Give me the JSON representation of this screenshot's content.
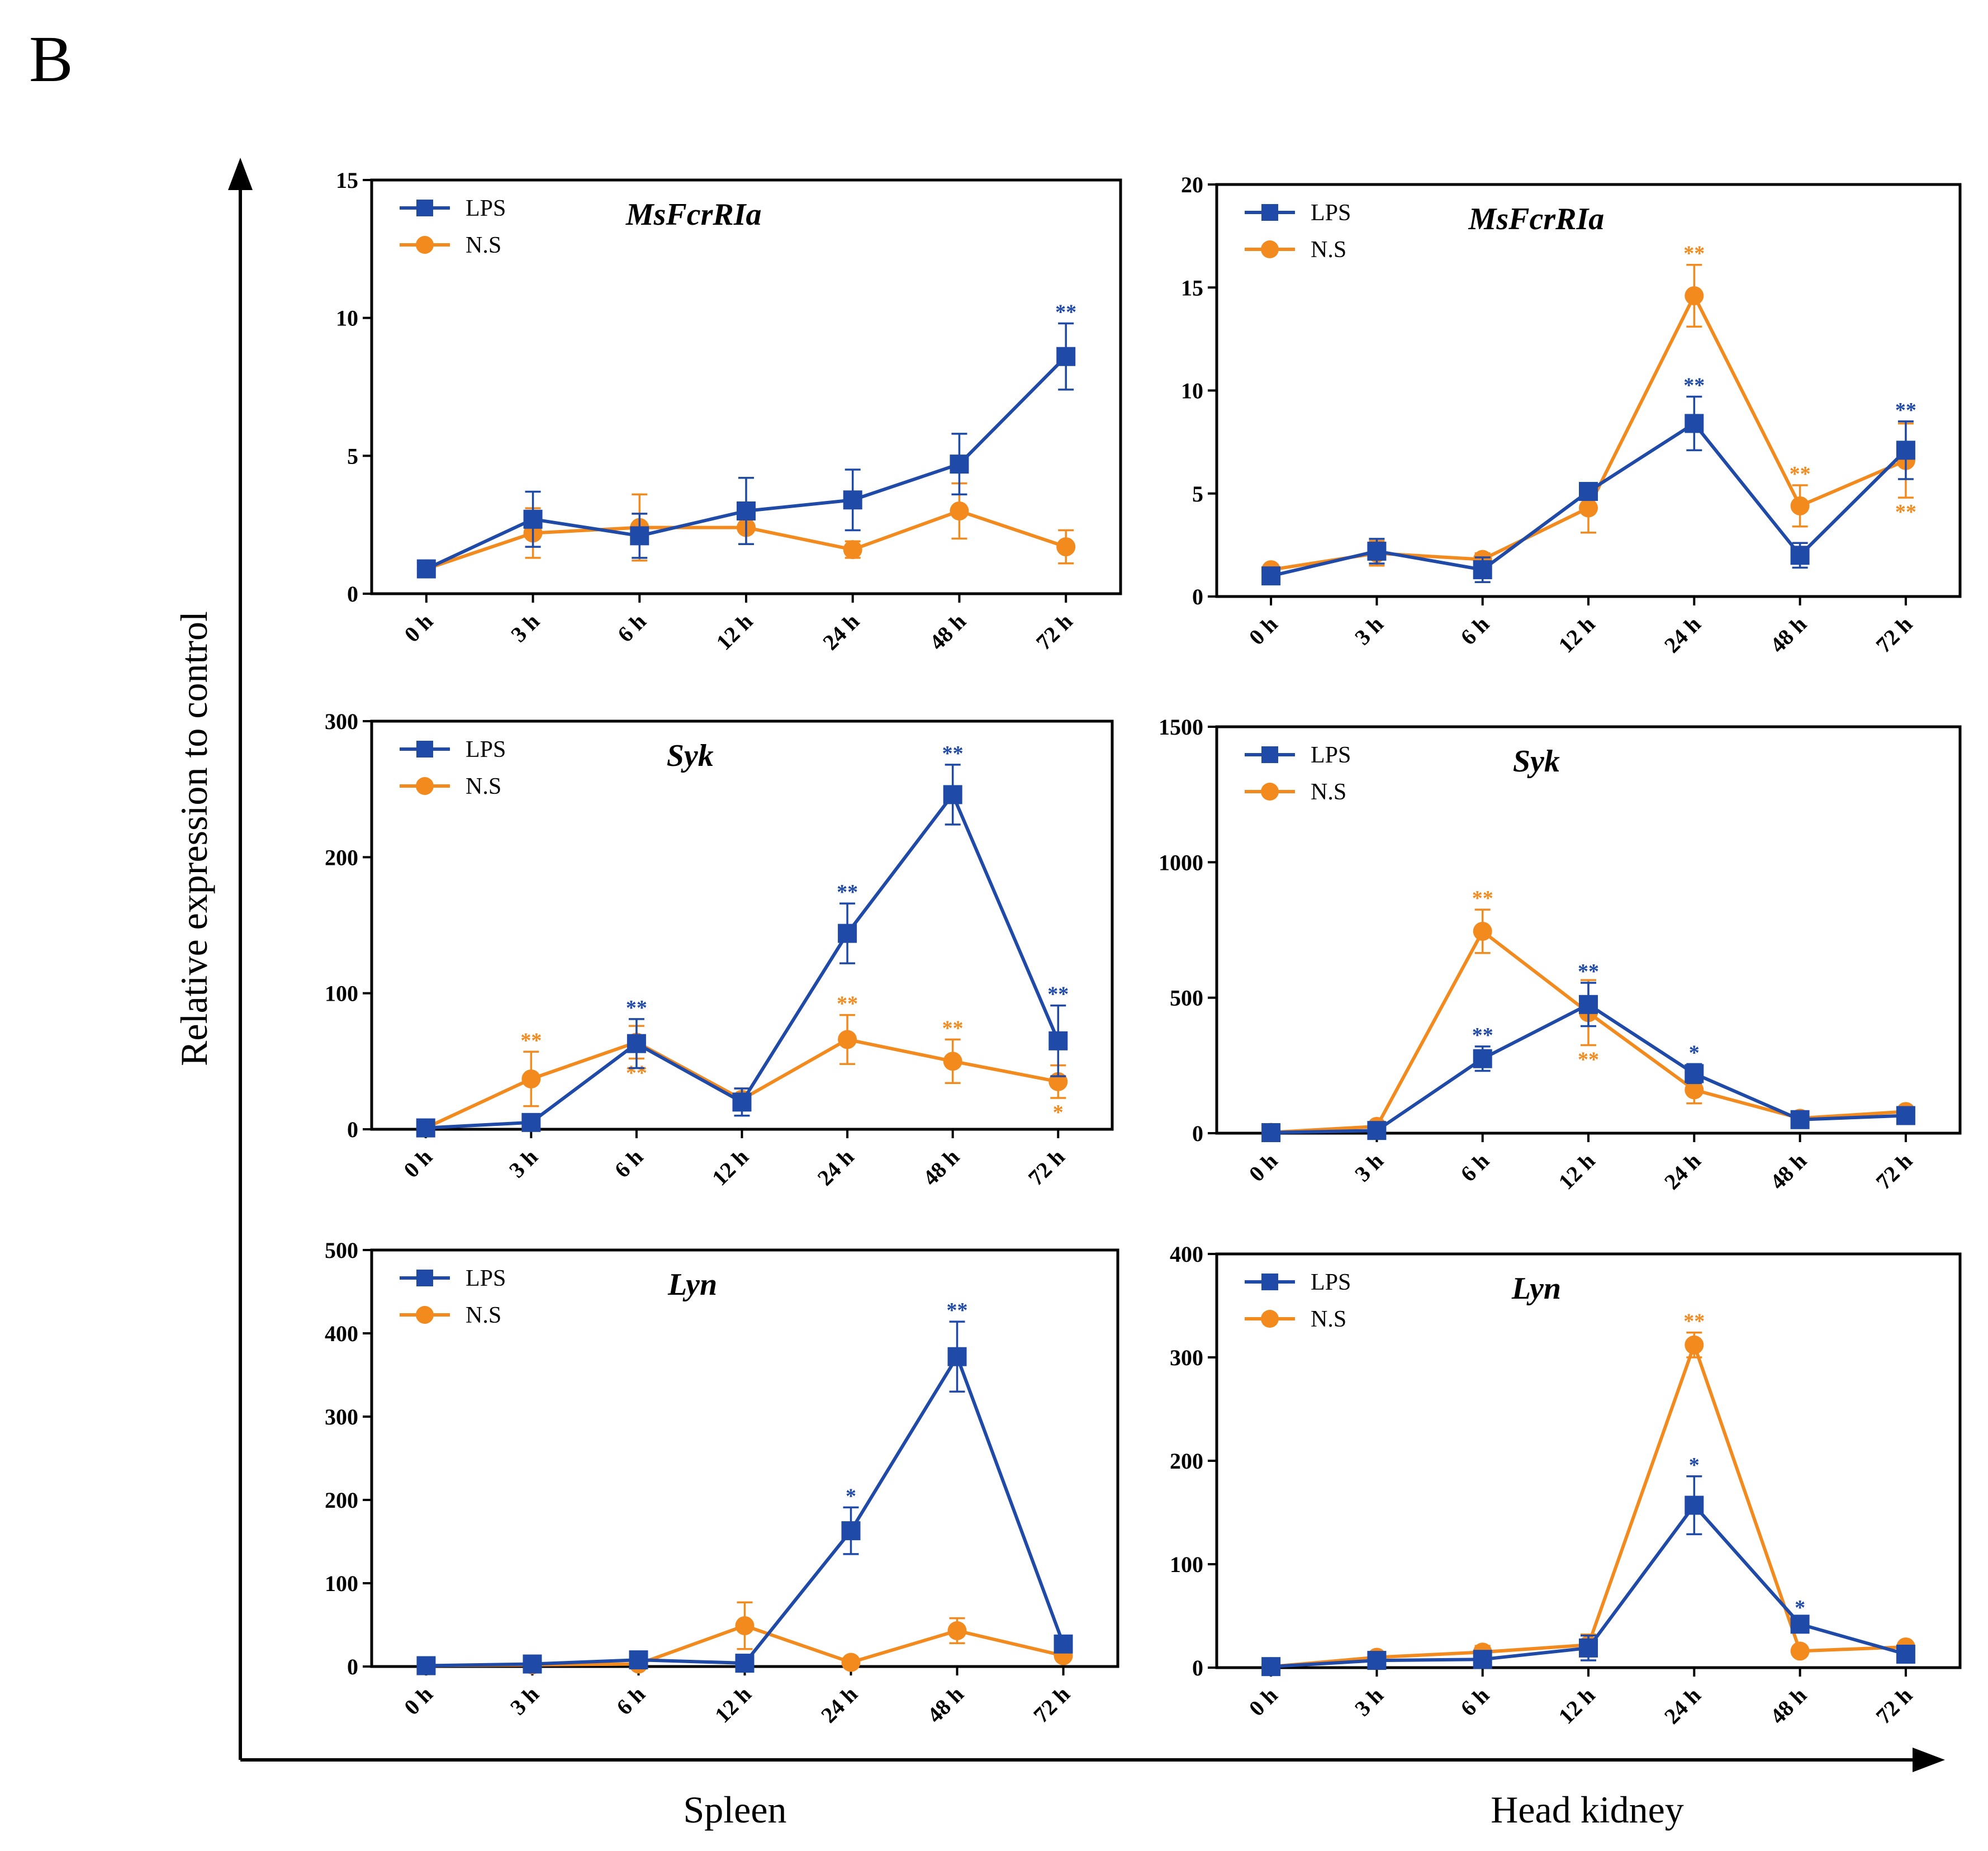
{
  "panel_label": "B",
  "ylabel": "Relative expression to control",
  "xgroup_labels": [
    "Spleen",
    "Head kidney"
  ],
  "colors": {
    "LPS": "#1f4aa8",
    "NS": "#f28a1e",
    "axis": "#000000"
  },
  "chart_data": [
    {
      "type": "line",
      "title": "MsFcrRIa",
      "tissue": "Spleen",
      "categories": [
        "0 h",
        "3 h",
        "6 h",
        "12 h",
        "24 h",
        "48 h",
        "72 h"
      ],
      "ylim": [
        0,
        15
      ],
      "yticks": [
        0,
        5,
        10,
        15
      ],
      "series": [
        {
          "name": "LPS",
          "values": [
            0.9,
            2.7,
            2.1,
            3.0,
            3.4,
            4.7,
            8.6
          ],
          "errors": [
            0.1,
            1.0,
            0.8,
            1.2,
            1.1,
            1.1,
            1.2
          ],
          "stars": [
            null,
            null,
            null,
            null,
            null,
            null,
            "**"
          ],
          "star_pos": [
            null,
            null,
            null,
            null,
            null,
            null,
            "above"
          ]
        },
        {
          "name": "N.S",
          "values": [
            0.9,
            2.2,
            2.4,
            2.4,
            1.6,
            3.0,
            1.7
          ],
          "errors": [
            0.1,
            0.9,
            1.2,
            0.6,
            0.3,
            1.0,
            0.6
          ],
          "stars": [
            null,
            null,
            null,
            null,
            null,
            null,
            null
          ],
          "star_pos": [
            null,
            null,
            null,
            null,
            null,
            null,
            null
          ]
        }
      ]
    },
    {
      "type": "line",
      "title": "MsFcrRIa",
      "tissue": "Head kidney",
      "categories": [
        "0 h",
        "3 h",
        "6 h",
        "12 h",
        "24 h",
        "48 h",
        "72 h"
      ],
      "ylim": [
        0,
        20
      ],
      "yticks": [
        0,
        5,
        10,
        15,
        20
      ],
      "series": [
        {
          "name": "LPS",
          "values": [
            1.0,
            2.2,
            1.3,
            5.1,
            8.4,
            2.0,
            7.1
          ],
          "errors": [
            0.2,
            0.6,
            0.6,
            0.3,
            1.3,
            0.6,
            1.4
          ],
          "stars": [
            null,
            null,
            null,
            null,
            "**",
            null,
            "**"
          ],
          "star_pos": [
            null,
            null,
            null,
            null,
            "above",
            null,
            "above"
          ]
        },
        {
          "name": "N.S",
          "values": [
            1.3,
            2.1,
            1.8,
            4.3,
            14.6,
            4.4,
            6.6
          ],
          "errors": [
            0.2,
            0.6,
            0.3,
            1.2,
            1.5,
            1.0,
            1.8
          ],
          "stars": [
            null,
            null,
            null,
            null,
            "**",
            "**",
            "**"
          ],
          "star_pos": [
            null,
            null,
            null,
            null,
            "above",
            "above",
            "below"
          ]
        }
      ]
    },
    {
      "type": "line",
      "title": "Syk",
      "tissue": "Spleen",
      "categories": [
        "0 h",
        "3 h",
        "6 h",
        "12 h",
        "24 h",
        "48 h",
        "72 h"
      ],
      "ylim": [
        0,
        300
      ],
      "yticks": [
        0,
        100,
        200,
        300
      ],
      "series": [
        {
          "name": "LPS",
          "values": [
            1,
            5,
            63,
            20,
            144,
            246,
            65
          ],
          "errors": [
            1,
            2,
            18,
            10,
            22,
            22,
            26
          ],
          "stars": [
            null,
            null,
            "**",
            null,
            "**",
            "**",
            "**"
          ],
          "star_pos": [
            null,
            null,
            "above",
            null,
            "above",
            "above",
            "above"
          ]
        },
        {
          "name": "N.S",
          "values": [
            1,
            37,
            64,
            22,
            66,
            50,
            35
          ],
          "errors": [
            1,
            20,
            12,
            8,
            18,
            16,
            12
          ],
          "stars": [
            null,
            "**",
            "**",
            null,
            "**",
            "**",
            "*"
          ],
          "star_pos": [
            null,
            "above",
            "below",
            null,
            "above",
            "above",
            "below"
          ]
        }
      ]
    },
    {
      "type": "line",
      "title": "Syk",
      "tissue": "Head kidney",
      "categories": [
        "0 h",
        "3 h",
        "6 h",
        "12 h",
        "24 h",
        "48 h",
        "72 h"
      ],
      "ylim": [
        0,
        1500
      ],
      "yticks": [
        0,
        500,
        1000,
        1500
      ],
      "series": [
        {
          "name": "LPS",
          "values": [
            2,
            10,
            275,
            475,
            220,
            50,
            65
          ],
          "errors": [
            2,
            5,
            45,
            80,
            35,
            10,
            12
          ],
          "stars": [
            null,
            null,
            "**",
            "**",
            "*",
            null,
            null
          ],
          "star_pos": [
            null,
            null,
            "above",
            "above",
            "above",
            null,
            null
          ]
        },
        {
          "name": "N.S",
          "values": [
            3,
            25,
            745,
            445,
            160,
            55,
            80
          ],
          "errors": [
            2,
            6,
            80,
            120,
            50,
            10,
            12
          ],
          "stars": [
            null,
            null,
            "**",
            "**",
            null,
            null,
            null
          ],
          "star_pos": [
            null,
            null,
            "above",
            "below",
            null,
            null,
            null
          ]
        }
      ]
    },
    {
      "type": "line",
      "title": "Lyn",
      "tissue": "Spleen",
      "categories": [
        "0 h",
        "3 h",
        "6 h",
        "12 h",
        "24 h",
        "48 h",
        "72 h"
      ],
      "ylim": [
        0,
        500
      ],
      "yticks": [
        0,
        100,
        200,
        300,
        400,
        500
      ],
      "series": [
        {
          "name": "LPS",
          "values": [
            1,
            3,
            8,
            4,
            163,
            372,
            27
          ],
          "errors": [
            1,
            2,
            3,
            3,
            28,
            42,
            8
          ],
          "stars": [
            null,
            null,
            null,
            null,
            "*",
            "**",
            null
          ],
          "star_pos": [
            null,
            null,
            null,
            null,
            "above",
            "above",
            null
          ]
        },
        {
          "name": "N.S",
          "values": [
            1,
            2,
            3,
            49,
            5,
            43,
            13
          ],
          "errors": [
            1,
            1,
            2,
            28,
            3,
            15,
            5
          ],
          "stars": [
            null,
            null,
            null,
            null,
            null,
            null,
            null
          ],
          "star_pos": [
            null,
            null,
            null,
            null,
            null,
            null,
            null
          ]
        }
      ]
    },
    {
      "type": "line",
      "title": "Lyn",
      "tissue": "Head kidney",
      "categories": [
        "0 h",
        "3 h",
        "6 h",
        "12 h",
        "24 h",
        "48 h",
        "72 h"
      ],
      "ylim": [
        0,
        400
      ],
      "yticks": [
        0,
        100,
        200,
        300,
        400
      ],
      "series": [
        {
          "name": "LPS",
          "values": [
            1,
            7,
            8,
            19,
            157,
            42,
            13
          ],
          "errors": [
            1,
            3,
            4,
            12,
            28,
            5,
            3
          ],
          "stars": [
            null,
            null,
            null,
            null,
            "*",
            "*",
            null
          ],
          "star_pos": [
            null,
            null,
            null,
            null,
            "above",
            "above",
            null
          ]
        },
        {
          "name": "N.S",
          "values": [
            1,
            10,
            15,
            22,
            312,
            16,
            20
          ],
          "errors": [
            1,
            3,
            6,
            10,
            12,
            3,
            4
          ],
          "stars": [
            null,
            null,
            null,
            null,
            "**",
            null,
            null
          ],
          "star_pos": [
            null,
            null,
            null,
            null,
            "above",
            null,
            null
          ]
        }
      ]
    }
  ]
}
